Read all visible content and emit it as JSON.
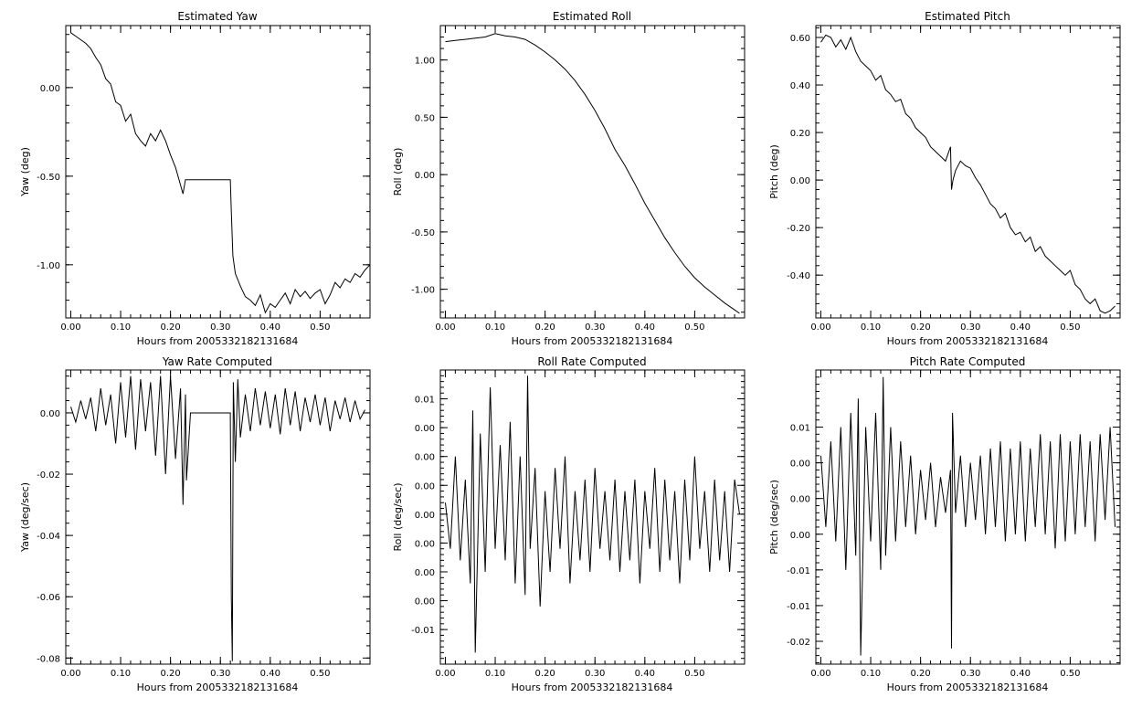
{
  "chart_data": [
    {
      "id": "yaw",
      "type": "line",
      "title": "Estimated Yaw",
      "xlabel": "Hours from 2005332182131684",
      "ylabel": "Yaw (deg)",
      "xlim": [
        -0.01,
        0.6
      ],
      "ylim": [
        -1.3,
        0.35
      ],
      "xticks": [
        0.0,
        0.1,
        0.2,
        0.3,
        0.4,
        0.5
      ],
      "xtick_labels": [
        "0.00",
        "0.10",
        "0.20",
        "0.30",
        "0.40",
        "0.50"
      ],
      "yticks": [
        0.0,
        -0.5,
        -1.0
      ],
      "ytick_labels": [
        "0.00",
        "-0.50",
        "-1.00"
      ],
      "x": [
        0.0,
        0.01,
        0.02,
        0.03,
        0.04,
        0.05,
        0.06,
        0.07,
        0.08,
        0.09,
        0.1,
        0.11,
        0.12,
        0.13,
        0.14,
        0.15,
        0.16,
        0.17,
        0.18,
        0.19,
        0.2,
        0.21,
        0.22,
        0.225,
        0.23,
        0.24,
        0.25,
        0.26,
        0.27,
        0.28,
        0.29,
        0.3,
        0.31,
        0.32,
        0.322,
        0.325,
        0.33,
        0.34,
        0.35,
        0.36,
        0.37,
        0.38,
        0.39,
        0.4,
        0.41,
        0.42,
        0.43,
        0.44,
        0.45,
        0.46,
        0.47,
        0.48,
        0.49,
        0.5,
        0.51,
        0.52,
        0.53,
        0.54,
        0.55,
        0.56,
        0.57,
        0.58,
        0.59,
        0.6
      ],
      "values": [
        0.31,
        0.29,
        0.27,
        0.25,
        0.22,
        0.17,
        0.13,
        0.05,
        0.02,
        -0.08,
        -0.1,
        -0.19,
        -0.15,
        -0.26,
        -0.3,
        -0.33,
        -0.26,
        -0.3,
        -0.24,
        -0.3,
        -0.38,
        -0.45,
        -0.55,
        -0.6,
        -0.52,
        -0.52,
        -0.52,
        -0.52,
        -0.52,
        -0.52,
        -0.52,
        -0.52,
        -0.52,
        -0.52,
        -0.7,
        -0.95,
        -1.05,
        -1.12,
        -1.18,
        -1.2,
        -1.23,
        -1.17,
        -1.27,
        -1.22,
        -1.24,
        -1.2,
        -1.16,
        -1.22,
        -1.14,
        -1.18,
        -1.15,
        -1.19,
        -1.16,
        -1.14,
        -1.22,
        -1.17,
        -1.1,
        -1.13,
        -1.08,
        -1.1,
        -1.05,
        -1.07,
        -1.03,
        -1.0
      ]
    },
    {
      "id": "roll",
      "type": "line",
      "title": "Estimated Roll",
      "xlabel": "Hours from 2005332182131684",
      "ylabel": "Roll (deg)",
      "xlim": [
        -0.01,
        0.6
      ],
      "ylim": [
        -1.25,
        1.3
      ],
      "xticks": [
        0.0,
        0.1,
        0.2,
        0.3,
        0.4,
        0.5
      ],
      "xtick_labels": [
        "0.00",
        "0.10",
        "0.20",
        "0.30",
        "0.40",
        "0.50"
      ],
      "yticks": [
        1.0,
        0.5,
        0.0,
        -0.5,
        -1.0
      ],
      "ytick_labels": [
        "1.00",
        "0.50",
        "0.00",
        "-0.50",
        "-1.00"
      ],
      "x": [
        0.0,
        0.02,
        0.04,
        0.06,
        0.08,
        0.1,
        0.12,
        0.14,
        0.16,
        0.18,
        0.2,
        0.22,
        0.24,
        0.26,
        0.28,
        0.3,
        0.32,
        0.34,
        0.36,
        0.38,
        0.4,
        0.42,
        0.44,
        0.46,
        0.48,
        0.5,
        0.52,
        0.54,
        0.56,
        0.58,
        0.59
      ],
      "values": [
        1.16,
        1.17,
        1.18,
        1.19,
        1.2,
        1.23,
        1.21,
        1.2,
        1.18,
        1.13,
        1.07,
        1.0,
        0.92,
        0.82,
        0.7,
        0.56,
        0.4,
        0.22,
        0.08,
        -0.08,
        -0.25,
        -0.4,
        -0.55,
        -0.68,
        -0.8,
        -0.9,
        -0.98,
        -1.05,
        -1.12,
        -1.18,
        -1.21
      ]
    },
    {
      "id": "pitch",
      "type": "line",
      "title": "Estimated Pitch",
      "xlabel": "Hours from 2005332182131684",
      "ylabel": "Pitch (deg)",
      "xlim": [
        -0.01,
        0.6
      ],
      "ylim": [
        -0.58,
        0.65
      ],
      "xticks": [
        0.0,
        0.1,
        0.2,
        0.3,
        0.4,
        0.5
      ],
      "xtick_labels": [
        "0.00",
        "0.10",
        "0.20",
        "0.30",
        "0.40",
        "0.50"
      ],
      "yticks": [
        0.6,
        0.4,
        0.2,
        0.0,
        -0.2,
        -0.4
      ],
      "ytick_labels": [
        "0.60",
        "0.40",
        "0.20",
        "0.00",
        "-0.20",
        "-0.40"
      ],
      "x": [
        0.0,
        0.01,
        0.02,
        0.03,
        0.04,
        0.05,
        0.06,
        0.07,
        0.08,
        0.09,
        0.1,
        0.11,
        0.12,
        0.13,
        0.14,
        0.15,
        0.16,
        0.17,
        0.18,
        0.19,
        0.2,
        0.21,
        0.22,
        0.23,
        0.24,
        0.25,
        0.26,
        0.262,
        0.265,
        0.27,
        0.28,
        0.29,
        0.3,
        0.31,
        0.32,
        0.33,
        0.34,
        0.35,
        0.36,
        0.37,
        0.38,
        0.39,
        0.4,
        0.41,
        0.42,
        0.43,
        0.44,
        0.45,
        0.46,
        0.47,
        0.48,
        0.49,
        0.5,
        0.51,
        0.52,
        0.53,
        0.54,
        0.55,
        0.56,
        0.57,
        0.58,
        0.59
      ],
      "values": [
        0.58,
        0.61,
        0.6,
        0.56,
        0.59,
        0.55,
        0.6,
        0.54,
        0.5,
        0.48,
        0.46,
        0.42,
        0.44,
        0.38,
        0.36,
        0.33,
        0.34,
        0.28,
        0.26,
        0.22,
        0.2,
        0.18,
        0.14,
        0.12,
        0.1,
        0.08,
        0.14,
        -0.04,
        0.0,
        0.04,
        0.08,
        0.06,
        0.05,
        0.01,
        -0.02,
        -0.06,
        -0.1,
        -0.12,
        -0.16,
        -0.14,
        -0.2,
        -0.23,
        -0.22,
        -0.26,
        -0.24,
        -0.3,
        -0.28,
        -0.32,
        -0.34,
        -0.36,
        -0.38,
        -0.4,
        -0.38,
        -0.44,
        -0.46,
        -0.5,
        -0.52,
        -0.5,
        -0.55,
        -0.56,
        -0.55,
        -0.53
      ]
    },
    {
      "id": "yaw-rate",
      "type": "line",
      "title": "Yaw Rate Computed",
      "xlabel": "Hours from 2005332182131684",
      "ylabel": "Yaw (deg/sec)",
      "xlim": [
        -0.01,
        0.6
      ],
      "ylim": [
        -0.082,
        0.014
      ],
      "xticks": [
        0.0,
        0.1,
        0.2,
        0.3,
        0.4,
        0.5
      ],
      "xtick_labels": [
        "0.00",
        "0.10",
        "0.20",
        "0.30",
        "0.40",
        "0.50"
      ],
      "yticks": [
        0.0,
        -0.02,
        -0.04,
        -0.06,
        -0.08
      ],
      "ytick_labels": [
        "0.00",
        "-0.02",
        "-0.04",
        "-0.06",
        "-0.08"
      ],
      "x": [
        0.0,
        0.01,
        0.02,
        0.03,
        0.04,
        0.05,
        0.06,
        0.07,
        0.08,
        0.09,
        0.1,
        0.11,
        0.12,
        0.13,
        0.14,
        0.15,
        0.16,
        0.17,
        0.18,
        0.19,
        0.2,
        0.21,
        0.22,
        0.225,
        0.23,
        0.232,
        0.24,
        0.26,
        0.28,
        0.3,
        0.31,
        0.32,
        0.322,
        0.324,
        0.326,
        0.33,
        0.335,
        0.34,
        0.35,
        0.36,
        0.37,
        0.38,
        0.39,
        0.4,
        0.41,
        0.42,
        0.43,
        0.44,
        0.45,
        0.46,
        0.47,
        0.48,
        0.49,
        0.5,
        0.51,
        0.52,
        0.53,
        0.54,
        0.55,
        0.56,
        0.57,
        0.58,
        0.59
      ],
      "values": [
        0.002,
        -0.003,
        0.004,
        -0.002,
        0.005,
        -0.006,
        0.008,
        -0.004,
        0.006,
        -0.01,
        0.01,
        -0.008,
        0.012,
        -0.012,
        0.011,
        -0.006,
        0.01,
        -0.014,
        0.012,
        -0.02,
        0.012,
        -0.015,
        0.008,
        -0.03,
        0.006,
        -0.022,
        0.0,
        0.0,
        0.0,
        0.0,
        0.0,
        0.0,
        -0.06,
        -0.081,
        0.01,
        -0.016,
        0.011,
        -0.008,
        0.006,
        -0.006,
        0.008,
        -0.004,
        0.007,
        -0.005,
        0.006,
        -0.007,
        0.008,
        -0.004,
        0.007,
        -0.006,
        0.005,
        -0.003,
        0.006,
        -0.004,
        0.005,
        -0.006,
        0.004,
        -0.002,
        0.005,
        -0.003,
        0.004,
        -0.002,
        0.001
      ]
    },
    {
      "id": "roll-rate",
      "type": "line",
      "title": "Roll Rate Computed",
      "xlabel": "Hours from 2005332182131684",
      "ylabel": "Roll (deg/sec)",
      "xlim": [
        -0.01,
        0.6
      ],
      "ylim": [
        -0.013,
        0.0125
      ],
      "xticks": [
        0.0,
        0.1,
        0.2,
        0.3,
        0.4,
        0.5
      ],
      "xtick_labels": [
        "0.00",
        "0.10",
        "0.20",
        "0.30",
        "0.40",
        "0.50"
      ],
      "yticks": [
        0.01,
        0.0075,
        0.005,
        0.0025,
        0.0,
        -0.0025,
        -0.005,
        -0.0075,
        -0.01
      ],
      "ytick_labels": [
        "0.01",
        "0.00",
        "0.00",
        "0.00",
        "0.00",
        "0.00",
        "0.00",
        "0.00",
        "-0.01"
      ],
      "x": [
        0.0,
        0.01,
        0.02,
        0.03,
        0.04,
        0.05,
        0.055,
        0.06,
        0.07,
        0.08,
        0.09,
        0.1,
        0.11,
        0.12,
        0.13,
        0.14,
        0.15,
        0.16,
        0.165,
        0.17,
        0.18,
        0.19,
        0.2,
        0.21,
        0.22,
        0.23,
        0.24,
        0.25,
        0.26,
        0.27,
        0.28,
        0.29,
        0.3,
        0.31,
        0.32,
        0.33,
        0.34,
        0.35,
        0.36,
        0.37,
        0.38,
        0.39,
        0.4,
        0.41,
        0.42,
        0.43,
        0.44,
        0.45,
        0.46,
        0.47,
        0.48,
        0.49,
        0.5,
        0.51,
        0.52,
        0.53,
        0.54,
        0.55,
        0.56,
        0.57,
        0.58,
        0.59
      ],
      "values": [
        0.001,
        -0.003,
        0.005,
        -0.004,
        0.003,
        -0.006,
        0.009,
        -0.012,
        0.007,
        -0.005,
        0.011,
        -0.003,
        0.006,
        -0.004,
        0.008,
        -0.006,
        0.005,
        -0.007,
        0.012,
        -0.003,
        0.004,
        -0.008,
        0.002,
        -0.005,
        0.004,
        -0.003,
        0.005,
        -0.006,
        0.002,
        -0.004,
        0.003,
        -0.005,
        0.004,
        -0.003,
        0.002,
        -0.004,
        0.003,
        -0.005,
        0.002,
        -0.004,
        0.003,
        -0.006,
        0.002,
        -0.003,
        0.004,
        -0.005,
        0.003,
        -0.004,
        0.002,
        -0.006,
        0.003,
        -0.004,
        0.005,
        -0.003,
        0.002,
        -0.005,
        0.003,
        -0.004,
        0.002,
        -0.005,
        0.003,
        0.0
      ]
    },
    {
      "id": "pitch-rate",
      "type": "line",
      "title": "Pitch Rate Computed",
      "xlabel": "Hours from 2005332182131684",
      "ylabel": "Pitch (deg/sec)",
      "xlim": [
        -0.01,
        0.6
      ],
      "ylim": [
        -0.0232,
        0.018
      ],
      "xticks": [
        0.0,
        0.1,
        0.2,
        0.3,
        0.4,
        0.5
      ],
      "xtick_labels": [
        "0.00",
        "0.10",
        "0.20",
        "0.30",
        "0.40",
        "0.50"
      ],
      "yticks": [
        0.01,
        0.005,
        0.0,
        -0.005,
        -0.01,
        -0.015,
        -0.02
      ],
      "ytick_labels": [
        "0.01",
        "0.00",
        "0.00",
        "0.00",
        "-0.01",
        "-0.01",
        "-0.02"
      ],
      "x": [
        0.0,
        0.01,
        0.02,
        0.03,
        0.04,
        0.05,
        0.06,
        0.07,
        0.075,
        0.08,
        0.09,
        0.1,
        0.11,
        0.12,
        0.125,
        0.13,
        0.14,
        0.15,
        0.16,
        0.17,
        0.18,
        0.19,
        0.2,
        0.21,
        0.22,
        0.23,
        0.24,
        0.25,
        0.26,
        0.262,
        0.264,
        0.27,
        0.28,
        0.29,
        0.3,
        0.31,
        0.32,
        0.33,
        0.34,
        0.35,
        0.36,
        0.37,
        0.38,
        0.39,
        0.4,
        0.41,
        0.42,
        0.43,
        0.44,
        0.45,
        0.46,
        0.47,
        0.48,
        0.49,
        0.5,
        0.51,
        0.52,
        0.53,
        0.54,
        0.55,
        0.56,
        0.57,
        0.58,
        0.59
      ],
      "values": [
        0.006,
        -0.004,
        0.008,
        -0.006,
        0.01,
        -0.01,
        0.012,
        -0.008,
        0.014,
        -0.022,
        0.01,
        -0.006,
        0.012,
        -0.01,
        0.017,
        -0.008,
        0.01,
        -0.006,
        0.008,
        -0.004,
        0.006,
        -0.005,
        0.004,
        -0.003,
        0.005,
        -0.004,
        0.003,
        -0.002,
        0.004,
        -0.021,
        0.012,
        -0.002,
        0.006,
        -0.004,
        0.005,
        -0.003,
        0.006,
        -0.005,
        0.007,
        -0.004,
        0.008,
        -0.006,
        0.007,
        -0.005,
        0.008,
        -0.006,
        0.007,
        -0.004,
        0.009,
        -0.005,
        0.008,
        -0.007,
        0.009,
        -0.006,
        0.008,
        -0.005,
        0.009,
        -0.004,
        0.008,
        -0.006,
        0.009,
        -0.003,
        0.01,
        -0.004
      ]
    }
  ]
}
